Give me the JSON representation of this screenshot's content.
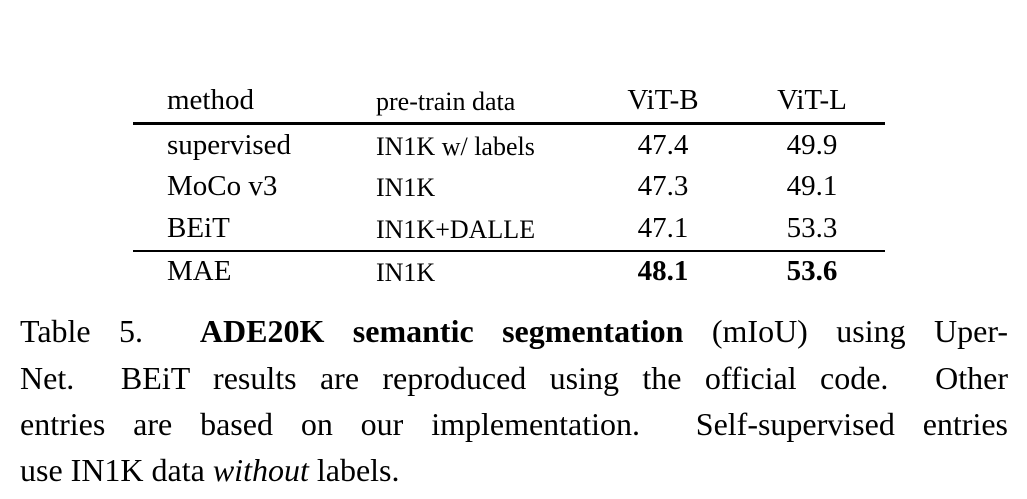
{
  "table": {
    "header": [
      "method",
      "pre-train data",
      "ViT-B",
      "ViT-L"
    ],
    "rows": [
      [
        "supervised",
        "IN1K w/ labels",
        "47.4",
        "49.9"
      ],
      [
        "MoCo v3",
        "IN1K",
        "47.3",
        "49.1"
      ],
      [
        "BEiT",
        "IN1K+DALLE",
        "47.1",
        "53.3"
      ],
      [
        "MAE",
        "IN1K",
        "48.1",
        "53.6"
      ]
    ]
  },
  "caption": {
    "lines": [
      [
        "Table 5.",
        "ADE20K semantic segmentation",
        "(mIoU) using Uper-"
      ],
      [
        "Net.  BEiT results are reproduced using the official code.  Other"
      ],
      [
        "entries are based on our implementation.  Self-supervised entries"
      ],
      [
        "use IN1K data",
        "without",
        "labels."
      ]
    ]
  }
}
